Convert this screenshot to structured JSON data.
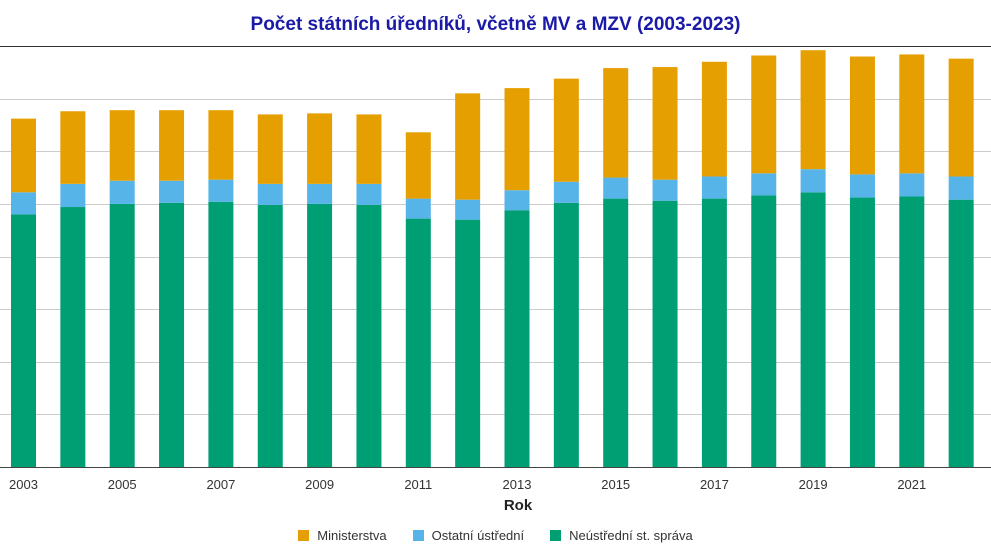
{
  "title": "Počet státních úředníků, včetně MV a MZV (2003-2023)",
  "chart_data": {
    "type": "bar",
    "stacked": true,
    "title": "Počet státních úředníků, včetně MV a MZV (2003-2023)",
    "xlabel": "Rok",
    "ylabel": "",
    "y_tick_labels_shown": false,
    "value_units": "relative (y-axis values not printed; ~50 units per gridline)",
    "ylim": [
      0,
      400
    ],
    "grid": true,
    "legend_position": "bottom",
    "categories": [
      "2003",
      "2004",
      "2005",
      "2006",
      "2007",
      "2008",
      "2009",
      "2010",
      "2011",
      "2012",
      "2013",
      "2014",
      "2015",
      "2016",
      "2017",
      "2018",
      "2019",
      "2020",
      "2021",
      "2022"
    ],
    "x_tick_labels": [
      "2003",
      "2005",
      "2007",
      "2009",
      "2011",
      "2013",
      "2015",
      "2017",
      "2019",
      "2021"
    ],
    "series": [
      {
        "name": "Neústřední st. správa",
        "color": "#009e73",
        "values": [
          240,
          247,
          250,
          251,
          252,
          249,
          250,
          249,
          236,
          235,
          244,
          251,
          255,
          253,
          255,
          258,
          261,
          256,
          257,
          254
        ]
      },
      {
        "name": "Ostatní ústřední",
        "color": "#56b4e9",
        "values": [
          21,
          22,
          22,
          21,
          21,
          20,
          19,
          20,
          19,
          19,
          19,
          20,
          20,
          20,
          21,
          21,
          22,
          22,
          22,
          22
        ]
      },
      {
        "name": "Ministerstva",
        "color": "#e69f00",
        "values": [
          70,
          69,
          67,
          67,
          66,
          66,
          67,
          66,
          63,
          101,
          97,
          98,
          104,
          107,
          109,
          112,
          113,
          112,
          113,
          112
        ]
      }
    ]
  }
}
